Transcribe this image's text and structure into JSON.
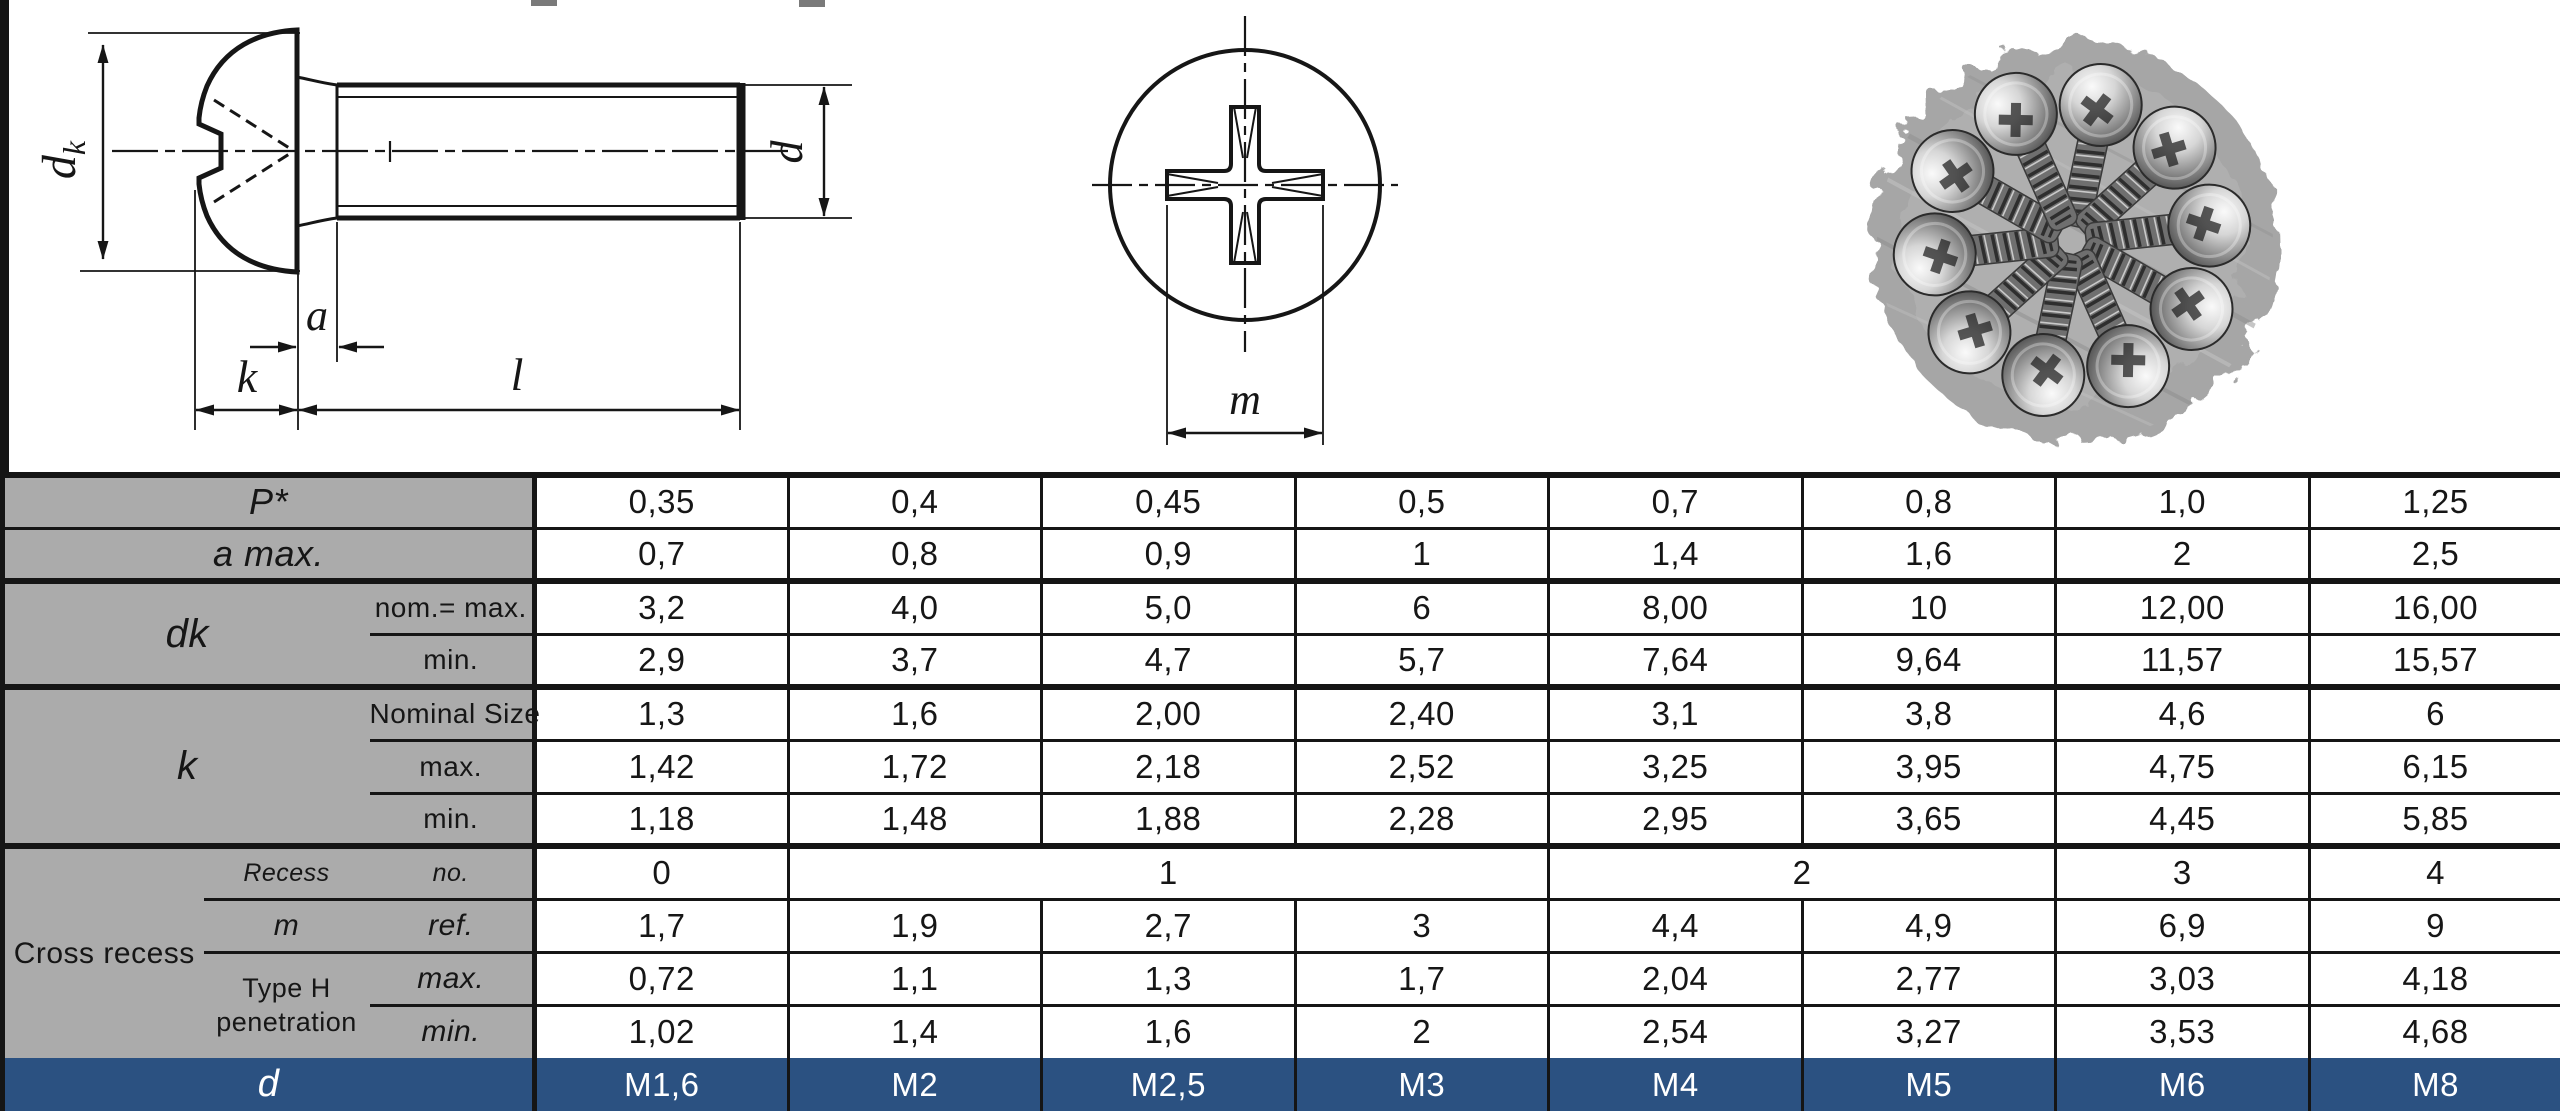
{
  "colors": {
    "header_grey": "#ababab",
    "accent_blue": "#2b5181",
    "line_black": "#151515"
  },
  "drawings": {
    "dk_main": "d",
    "dk_sub": "k",
    "a": "a",
    "k": "k",
    "l": "l",
    "d": "d",
    "m": "m"
  },
  "table": {
    "rows": [
      {
        "cells": [
          {
            "t": "P*",
            "cs": 3,
            "c": "h h-em hr",
            "n": "row-label-pitch"
          },
          {
            "t": "0,35"
          },
          {
            "t": "0,4"
          },
          {
            "t": "0,45"
          },
          {
            "t": "0,5"
          },
          {
            "t": "0,7"
          },
          {
            "t": "0,8"
          },
          {
            "t": "1,0"
          },
          {
            "t": "1,25"
          }
        ]
      },
      {
        "cells": [
          {
            "t": "a max.",
            "cs": 3,
            "c": "h h-em hr",
            "n": "row-label-a-max"
          },
          {
            "t": "0,7"
          },
          {
            "t": "0,8"
          },
          {
            "t": "0,9"
          },
          {
            "t": "1"
          },
          {
            "t": "1,4"
          },
          {
            "t": "1,6"
          },
          {
            "t": "2"
          },
          {
            "t": "2,5"
          }
        ]
      },
      {
        "cells": [
          {
            "t": "dk",
            "cs": 2,
            "rs": 2,
            "c": "h h-em h-big tb",
            "n": "row-label-dk"
          },
          {
            "t": "nom.= max.",
            "c": "h h-sub h-nw hr tb",
            "n": "row-sublabel"
          },
          {
            "t": "3,2",
            "c": "d tb"
          },
          {
            "t": "4,0",
            "c": "d tb"
          },
          {
            "t": "5,0",
            "c": "d tb"
          },
          {
            "t": "6",
            "c": "d tb"
          },
          {
            "t": "8,00",
            "c": "d tb"
          },
          {
            "t": "10",
            "c": "d tb"
          },
          {
            "t": "12,00",
            "c": "d tb"
          },
          {
            "t": "16,00",
            "c": "d tb"
          }
        ]
      },
      {
        "cells": [
          {
            "t": "min.",
            "c": "h h-sub hr",
            "n": "row-sublabel"
          },
          {
            "t": "2,9"
          },
          {
            "t": "3,7"
          },
          {
            "t": "4,7"
          },
          {
            "t": "5,7"
          },
          {
            "t": "7,64"
          },
          {
            "t": "9,64"
          },
          {
            "t": "11,57"
          },
          {
            "t": "15,57"
          }
        ]
      },
      {
        "cells": [
          {
            "t": "k",
            "cs": 2,
            "rs": 3,
            "c": "h h-em h-big tb",
            "n": "row-label-k"
          },
          {
            "t": "Nominal Size",
            "c": "h h-sub h-nw hr tb",
            "n": "row-sublabel"
          },
          {
            "t": "1,3",
            "c": "d tb"
          },
          {
            "t": "1,6",
            "c": "d tb"
          },
          {
            "t": "2,00",
            "c": "d tb"
          },
          {
            "t": "2,40",
            "c": "d tb"
          },
          {
            "t": "3,1",
            "c": "d tb"
          },
          {
            "t": "3,8",
            "c": "d tb"
          },
          {
            "t": "4,6",
            "c": "d tb"
          },
          {
            "t": "6",
            "c": "d tb"
          }
        ]
      },
      {
        "cells": [
          {
            "t": "max.",
            "c": "h h-sub hr",
            "n": "row-sublabel"
          },
          {
            "t": "1,42"
          },
          {
            "t": "1,72"
          },
          {
            "t": "2,18"
          },
          {
            "t": "2,52"
          },
          {
            "t": "3,25"
          },
          {
            "t": "3,95"
          },
          {
            "t": "4,75"
          },
          {
            "t": "6,15"
          }
        ]
      },
      {
        "cells": [
          {
            "t": "min.",
            "c": "h h-sub hr",
            "n": "row-sublabel"
          },
          {
            "t": "1,18"
          },
          {
            "t": "1,48"
          },
          {
            "t": "1,88"
          },
          {
            "t": "2,28"
          },
          {
            "t": "2,95"
          },
          {
            "t": "3,65"
          },
          {
            "t": "4,45"
          },
          {
            "t": "5,85"
          }
        ]
      },
      {
        "cells": [
          {
            "t": "Cross recess",
            "rs": 4,
            "c": "h h-cross tb nbb",
            "n": "row-label-cross-recess"
          },
          {
            "t": "Recess",
            "c": "h h-it-sm tb",
            "n": "row-sublabel"
          },
          {
            "t": "no.",
            "c": "h h-it-sm hr tb",
            "n": "row-sublabel"
          },
          {
            "t": "0",
            "c": "d tb"
          },
          {
            "t": "1",
            "cs": 3,
            "c": "d tb"
          },
          {
            "t": "2",
            "cs": 2,
            "c": "d tb"
          },
          {
            "t": "3",
            "c": "d tb"
          },
          {
            "t": "4",
            "c": "d tb"
          }
        ]
      },
      {
        "cells": [
          {
            "t": "m",
            "c": "h h-it-md",
            "n": "row-sublabel"
          },
          {
            "t": "ref.",
            "c": "h h-it-md hr",
            "n": "row-sublabel"
          },
          {
            "t": "1,7"
          },
          {
            "t": "1,9"
          },
          {
            "t": "2,7"
          },
          {
            "t": "3"
          },
          {
            "t": "4,4"
          },
          {
            "t": "4,9"
          },
          {
            "t": "6,9"
          },
          {
            "t": "9"
          }
        ]
      },
      {
        "cells": [
          {
            "t": "Type H\npenetration",
            "rs": 2,
            "c": "h h-two nbb",
            "n": "row-sublabel"
          },
          {
            "t": "max.",
            "c": "h h-it-md hr",
            "n": "row-sublabel"
          },
          {
            "t": "0,72"
          },
          {
            "t": "1,1"
          },
          {
            "t": "1,3"
          },
          {
            "t": "1,7"
          },
          {
            "t": "2,04"
          },
          {
            "t": "2,77"
          },
          {
            "t": "3,03"
          },
          {
            "t": "4,18"
          }
        ]
      },
      {
        "cells": [
          {
            "t": "min.",
            "c": "h h-it-md hr nbb",
            "n": "row-sublabel"
          },
          {
            "t": "1,02",
            "c": "d nbb"
          },
          {
            "t": "1,4",
            "c": "d nbb"
          },
          {
            "t": "1,6",
            "c": "d nbb"
          },
          {
            "t": "2",
            "c": "d nbb"
          },
          {
            "t": "2,54",
            "c": "d nbb"
          },
          {
            "t": "3,27",
            "c": "d nbb"
          },
          {
            "t": "3,53",
            "c": "d nbb"
          },
          {
            "t": "4,68",
            "c": "d nbb"
          }
        ]
      },
      {
        "cells": [
          {
            "t": "d",
            "cs": 3,
            "c": "b b-d hr",
            "n": "row-label-d"
          },
          {
            "t": "M1,6",
            "c": "b"
          },
          {
            "t": "M2",
            "c": "b"
          },
          {
            "t": "M2,5",
            "c": "b"
          },
          {
            "t": "M3",
            "c": "b"
          },
          {
            "t": "M4",
            "c": "b"
          },
          {
            "t": "M5",
            "c": "b"
          },
          {
            "t": "M6",
            "c": "b"
          },
          {
            "t": "M8",
            "c": "b"
          }
        ]
      }
    ]
  }
}
